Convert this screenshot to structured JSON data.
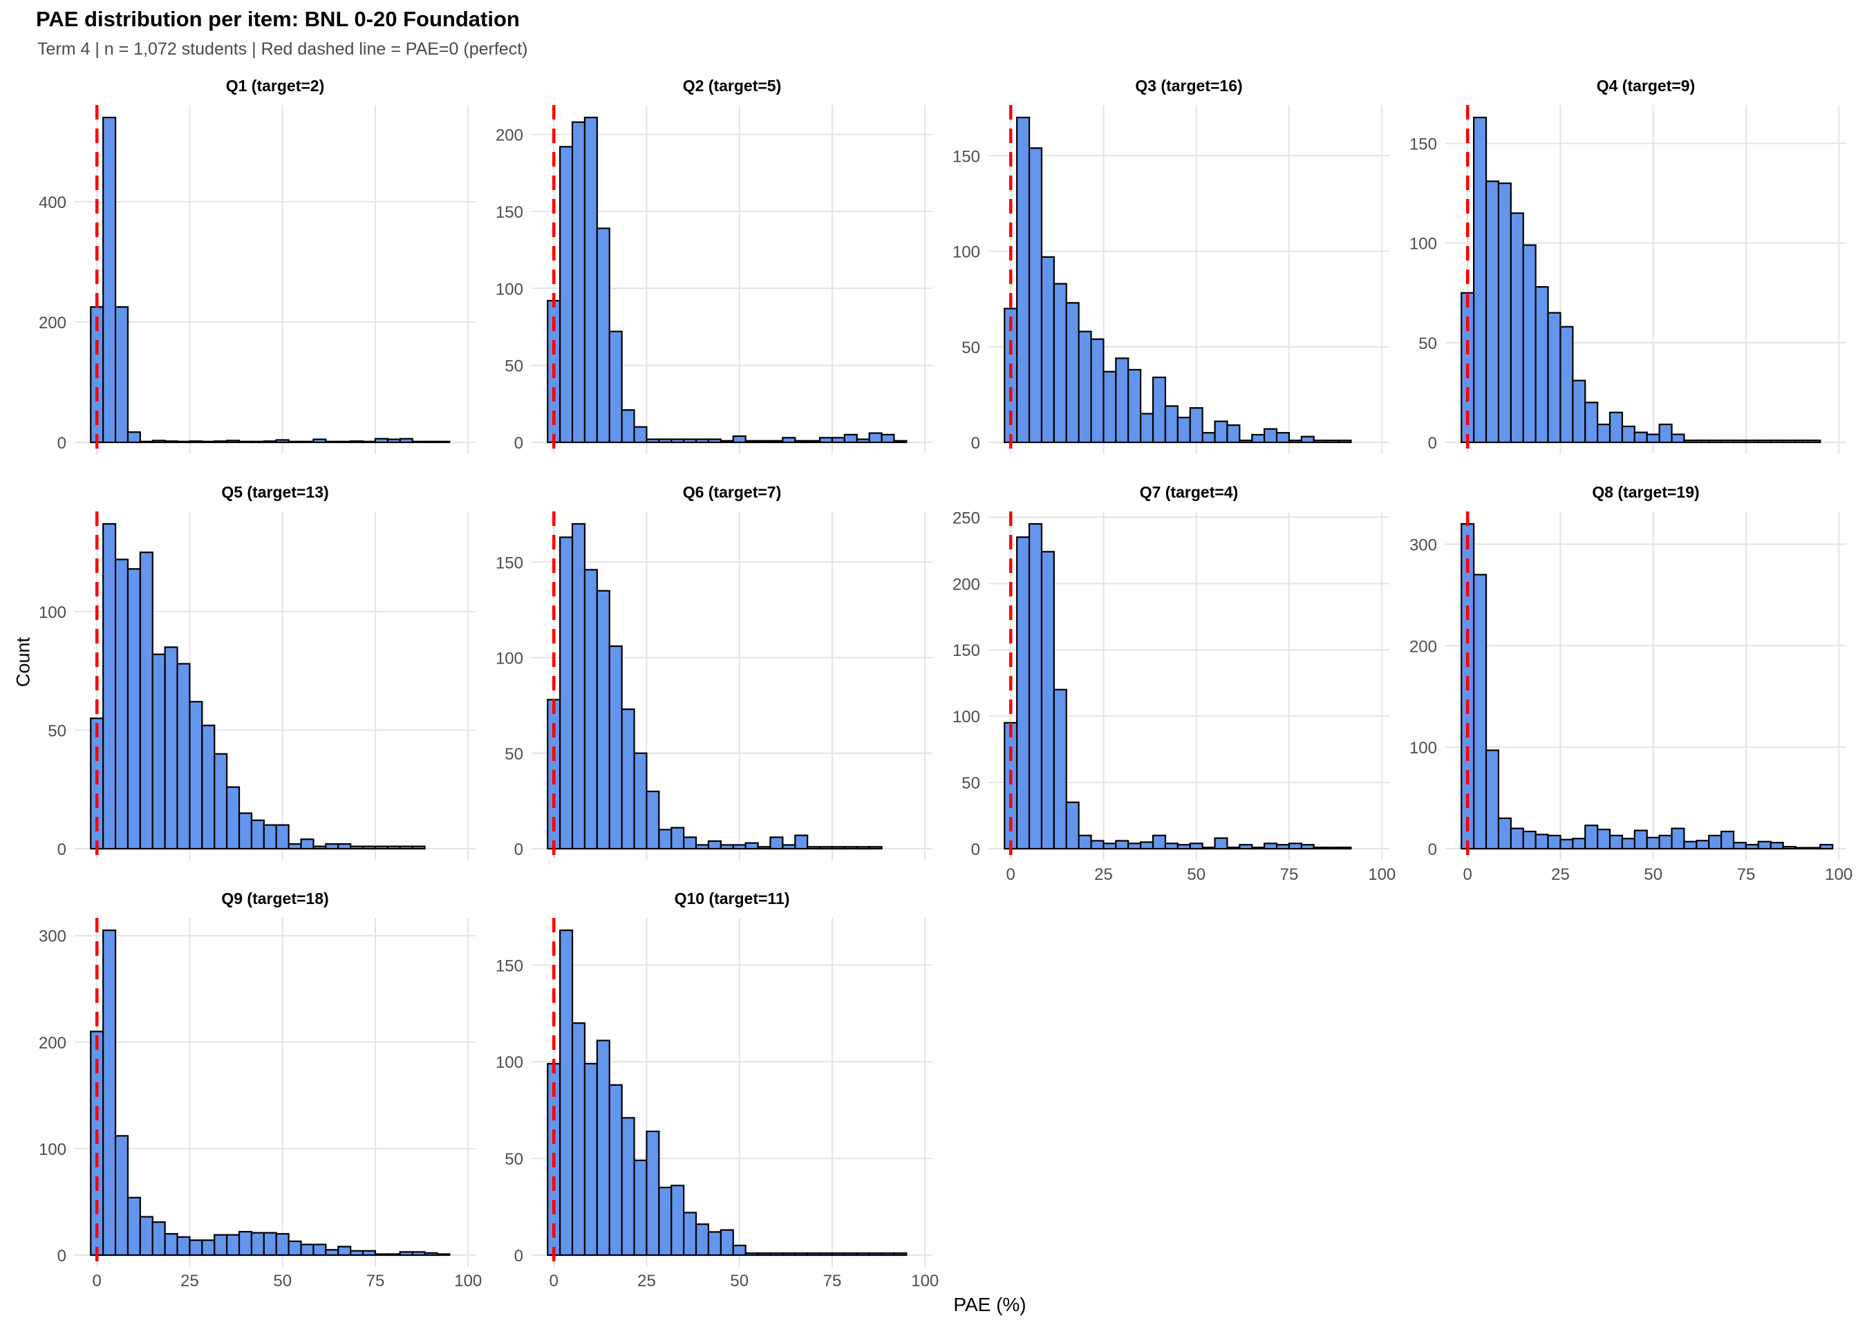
{
  "chart_data": {
    "type": "histogram",
    "title": "PAE distribution per item: BNL 0-20 Foundation",
    "subtitle": "Term 4 | n = 1,072 students | Red dashed line = PAE=0 (perfect)",
    "xlabel": "PAE (%)",
    "ylabel": "Count",
    "legend": "none",
    "grid": "major-only",
    "layout": {
      "columns": 4,
      "rows": 3,
      "shared_x_axis": true,
      "free_y_axis": true
    },
    "x_ticks": [
      0,
      25,
      50,
      75,
      100
    ],
    "xlim": [
      -6,
      102
    ],
    "bin_start": -1.67,
    "bin_width": 3.333,
    "red_line_x": 0,
    "colors": {
      "bar_fill": "#6495ED",
      "bar_stroke": "#000000",
      "red_line": "#FF0000",
      "gridline": "#E4E4E4",
      "axis_text": "#4D4D4D",
      "subtitle_text": "#4A4A4A",
      "background": "#FFFFFF"
    },
    "facets": [
      {
        "label": "Q1 (target=2)",
        "target": 2,
        "y_ticks": [
          0,
          200,
          400
        ],
        "values": [
          225,
          540,
          225,
          17,
          1,
          3,
          2,
          1,
          2,
          1,
          2,
          3,
          1,
          1,
          2,
          4,
          1,
          1,
          5,
          1,
          1,
          2,
          1,
          6,
          5,
          6,
          1,
          1,
          1,
          0
        ]
      },
      {
        "label": "Q2 (target=5)",
        "target": 5,
        "y_ticks": [
          0,
          50,
          100,
          150,
          200
        ],
        "values": [
          92,
          192,
          208,
          211,
          139,
          72,
          21,
          10,
          2,
          2,
          2,
          2,
          2,
          2,
          1,
          4,
          1,
          1,
          1,
          3,
          1,
          1,
          3,
          3,
          5,
          2,
          6,
          5,
          1,
          0
        ]
      },
      {
        "label": "Q3 (target=16)",
        "target": 16,
        "y_ticks": [
          0,
          50,
          100,
          150
        ],
        "values": [
          70,
          170,
          154,
          97,
          83,
          73,
          58,
          54,
          37,
          44,
          38,
          15,
          34,
          19,
          13,
          18,
          5,
          11,
          9,
          1,
          4,
          7,
          5,
          1,
          3,
          1,
          1,
          1,
          0,
          0
        ]
      },
      {
        "label": "Q4 (target=9)",
        "target": 9,
        "y_ticks": [
          0,
          50,
          100,
          150
        ],
        "values": [
          75,
          163,
          131,
          130,
          115,
          99,
          78,
          65,
          58,
          31,
          20,
          9,
          15,
          8,
          5,
          4,
          9,
          4,
          1,
          1,
          1,
          1,
          1,
          1,
          1,
          1,
          1,
          1,
          1,
          0
        ]
      },
      {
        "label": "Q5 (target=13)",
        "target": 13,
        "y_ticks": [
          0,
          50,
          100
        ],
        "values": [
          55,
          137,
          122,
          118,
          125,
          82,
          85,
          78,
          62,
          52,
          40,
          26,
          15,
          12,
          10,
          10,
          2,
          4,
          1,
          2,
          2,
          1,
          1,
          1,
          1,
          1,
          1,
          0,
          0,
          0
        ]
      },
      {
        "label": "Q6 (target=7)",
        "target": 7,
        "y_ticks": [
          0,
          50,
          100,
          150
        ],
        "values": [
          78,
          163,
          170,
          146,
          135,
          106,
          73,
          50,
          30,
          10,
          11,
          6,
          2,
          4,
          2,
          2,
          3,
          1,
          6,
          2,
          7,
          1,
          1,
          1,
          1,
          1,
          1,
          0,
          0,
          0
        ]
      },
      {
        "label": "Q7 (target=4)",
        "target": 4,
        "y_ticks": [
          0,
          50,
          100,
          150,
          200,
          250
        ],
        "values": [
          95,
          235,
          245,
          224,
          120,
          35,
          10,
          6,
          4,
          6,
          4,
          5,
          10,
          4,
          3,
          4,
          1,
          8,
          1,
          3,
          1,
          4,
          3,
          4,
          3,
          1,
          1,
          1,
          0,
          0
        ]
      },
      {
        "label": "Q8 (target=19)",
        "target": 19,
        "y_ticks": [
          0,
          100,
          200,
          300
        ],
        "values": [
          320,
          270,
          97,
          30,
          20,
          17,
          14,
          13,
          9,
          10,
          23,
          19,
          13,
          10,
          18,
          11,
          13,
          20,
          7,
          8,
          13,
          17,
          6,
          4,
          7,
          6,
          2,
          1,
          1,
          4
        ]
      },
      {
        "label": "Q9 (target=18)",
        "target": 18,
        "y_ticks": [
          0,
          100,
          200,
          300
        ],
        "values": [
          210,
          305,
          112,
          54,
          36,
          31,
          20,
          17,
          14,
          14,
          19,
          19,
          22,
          21,
          21,
          20,
          13,
          10,
          10,
          5,
          8,
          4,
          4,
          1,
          1,
          3,
          3,
          2,
          1,
          0
        ]
      },
      {
        "label": "Q10 (target=11)",
        "target": 11,
        "y_ticks": [
          0,
          50,
          100,
          150
        ],
        "values": [
          99,
          168,
          120,
          99,
          111,
          88,
          71,
          49,
          64,
          35,
          36,
          22,
          16,
          12,
          13,
          5,
          1,
          1,
          1,
          1,
          1,
          1,
          1,
          1,
          1,
          1,
          1,
          1,
          1,
          0
        ]
      }
    ]
  }
}
